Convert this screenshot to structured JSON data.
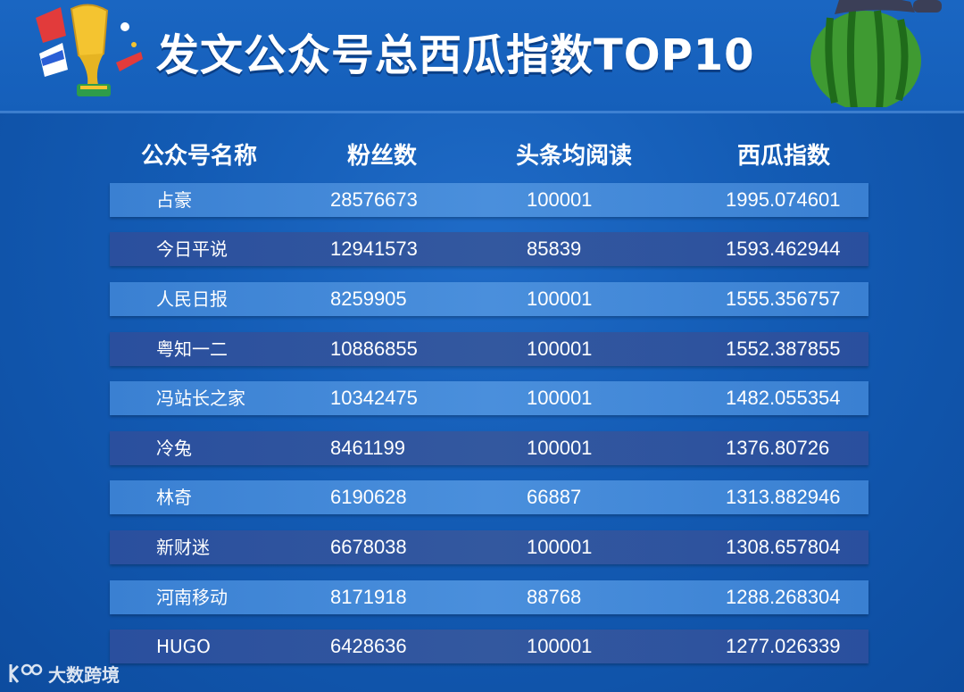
{
  "header": {
    "title": "发文公众号总西瓜指数TOP10",
    "decor_left_icon": "trophy-icon",
    "decor_right_icon": "watermelon-icon"
  },
  "watermark": {
    "logo_icon": "dashuju-logo-icon",
    "text": "大数跨境"
  },
  "colors": {
    "background": "#135bb4",
    "row_light": "#4a8fdc",
    "row_dark": "#2f5aa6",
    "text": "#ffffff"
  },
  "chart_data": {
    "type": "table",
    "columns": [
      "公众号名称",
      "粉丝数",
      "头条均阅读",
      "西瓜指数"
    ],
    "rows": [
      [
        "占豪",
        "28576673",
        "100001",
        "1995.074601"
      ],
      [
        "今日平说",
        "12941573",
        "85839",
        "1593.462944"
      ],
      [
        "人民日报",
        "8259905",
        "100001",
        "1555.356757"
      ],
      [
        "粤知一二",
        "10886855",
        "100001",
        "1552.387855"
      ],
      [
        "冯站长之家",
        "10342475",
        "100001",
        "1482.055354"
      ],
      [
        "冷兔",
        "8461199",
        "100001",
        "1376.80726"
      ],
      [
        "林奇",
        "6190628",
        "66887",
        "1313.882946"
      ],
      [
        "新财迷",
        "6678038",
        "100001",
        "1308.657804"
      ],
      [
        "河南移动",
        "8171918",
        "88768",
        "1288.268304"
      ],
      [
        "HUGO",
        "6428636",
        "100001",
        "1277.026339"
      ]
    ]
  }
}
